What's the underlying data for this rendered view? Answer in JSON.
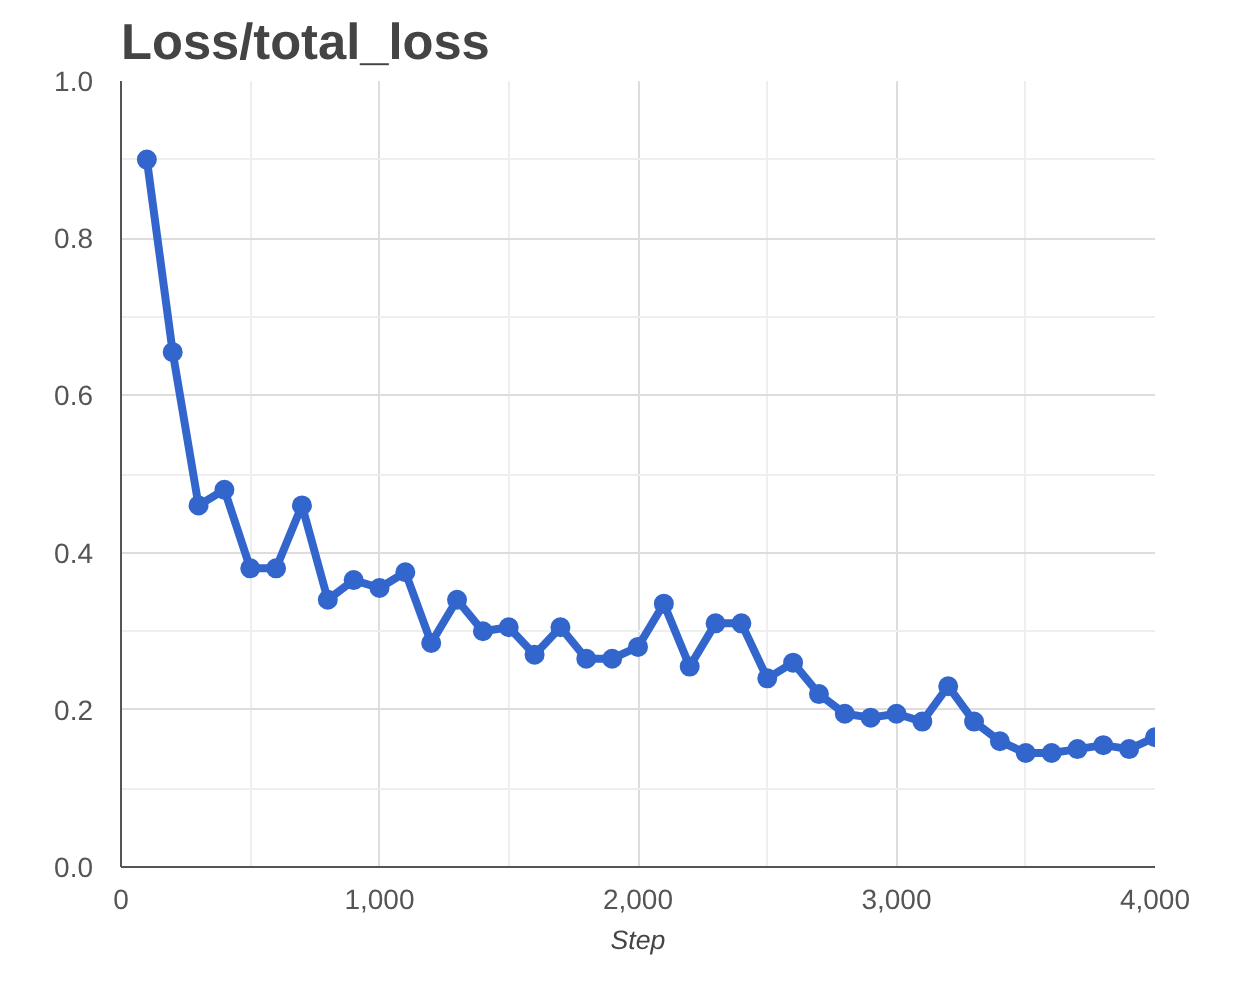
{
  "chart_data": {
    "type": "line",
    "title": "Loss/total_loss",
    "xlabel": "Step",
    "x": [
      100,
      200,
      300,
      400,
      500,
      600,
      700,
      800,
      900,
      1000,
      1100,
      1200,
      1300,
      1400,
      1500,
      1600,
      1700,
      1800,
      1900,
      2000,
      2100,
      2200,
      2300,
      2400,
      2500,
      2600,
      2700,
      2800,
      2900,
      3000,
      3100,
      3200,
      3300,
      3400,
      3500,
      3600,
      3700,
      3800,
      3900,
      4000
    ],
    "series": [
      {
        "color": "#3366cc",
        "values": [
          0.9,
          0.655,
          0.46,
          0.48,
          0.38,
          0.38,
          0.46,
          0.34,
          0.365,
          0.355,
          0.375,
          0.285,
          0.34,
          0.3,
          0.305,
          0.27,
          0.305,
          0.265,
          0.265,
          0.28,
          0.335,
          0.255,
          0.31,
          0.31,
          0.24,
          0.26,
          0.22,
          0.195,
          0.19,
          0.195,
          0.185,
          0.23,
          0.185,
          0.16,
          0.145,
          0.145,
          0.15,
          0.155,
          0.15,
          0.165
        ]
      }
    ],
    "xlim": [
      0,
      4000
    ],
    "ylim": [
      0,
      1
    ],
    "xticks": [
      0,
      {
        "value": 500,
        "label": null
      },
      {
        "value": 1000,
        "label": "1,000"
      },
      {
        "value": 1500,
        "label": null
      },
      {
        "value": 2000,
        "label": "2,000"
      },
      {
        "value": 2500,
        "label": null
      },
      {
        "value": 3000,
        "label": "3,000"
      },
      {
        "value": 3500,
        "label": null
      },
      {
        "value": 4000,
        "label": "4,000"
      }
    ],
    "yticks": [
      {
        "value": 0,
        "label": "0.0"
      },
      {
        "value": 0.1,
        "label": null
      },
      {
        "value": 0.2,
        "label": "0.2"
      },
      {
        "value": 0.3,
        "label": null
      },
      {
        "value": 0.4,
        "label": "0.4"
      },
      {
        "value": 0.5,
        "label": null
      },
      {
        "value": 0.6,
        "label": "0.6"
      },
      {
        "value": 0.7,
        "label": null
      },
      {
        "value": 0.8,
        "label": "0.8"
      },
      {
        "value": 0.9,
        "label": null
      },
      {
        "value": 1,
        "label": "1.0"
      }
    ],
    "grid": true,
    "marker": "circle",
    "line_style": "solid"
  }
}
